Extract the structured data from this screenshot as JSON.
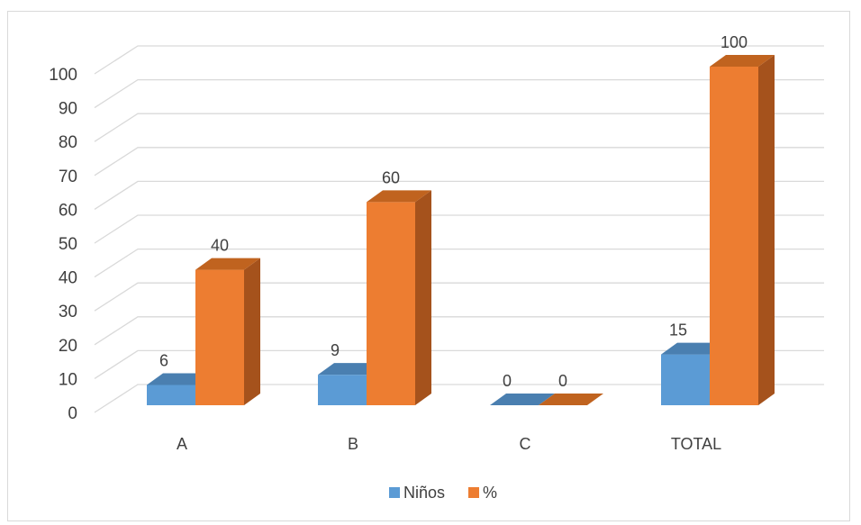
{
  "chart_data": {
    "type": "bar",
    "categories": [
      "A",
      "B",
      "C",
      "TOTAL"
    ],
    "series": [
      {
        "name": "Niños",
        "values": [
          6,
          9,
          0,
          15
        ],
        "color": "#5b9bd5",
        "side_color": "#41719c",
        "top_color": "#4a7fb0"
      },
      {
        "name": "%",
        "values": [
          40,
          60,
          0,
          100
        ],
        "color": "#ed7d31",
        "side_color": "#a5521c",
        "top_color": "#c0631f"
      }
    ],
    "ylim": [
      0,
      100
    ],
    "yticks": [
      "0",
      "10",
      "20",
      "30",
      "40",
      "50",
      "60",
      "70",
      "80",
      "90",
      "100"
    ],
    "data_labels": [
      [
        "6",
        "9",
        "0",
        "15"
      ],
      [
        "40",
        "60",
        "0",
        "100"
      ]
    ],
    "grid": true,
    "legend_position": "bottom",
    "three_d": true
  }
}
